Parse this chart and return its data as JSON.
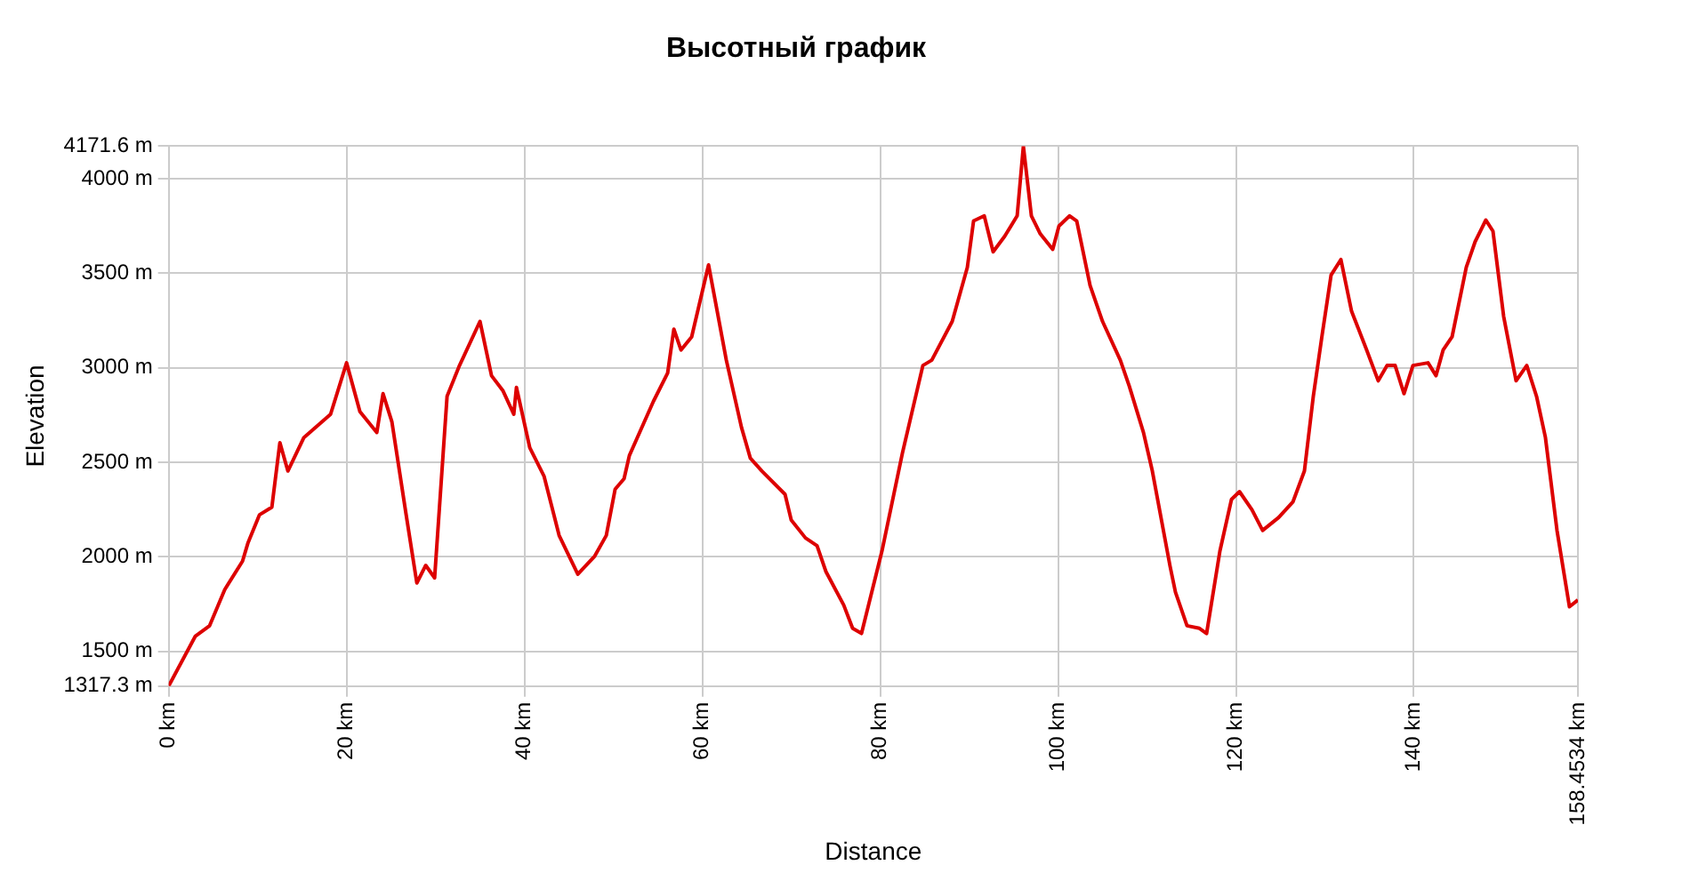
{
  "chart_data": {
    "type": "line",
    "title": "Высотный график",
    "xlabel": "Distance",
    "ylabel": "Elevation",
    "xlim": [
      0,
      158.4534
    ],
    "xticks": [
      {
        "value": 0,
        "label": "0 km"
      },
      {
        "value": 20,
        "label": "20 km"
      },
      {
        "value": 40,
        "label": "40 km"
      },
      {
        "value": 60,
        "label": "60 km"
      },
      {
        "value": 80,
        "label": "80 km"
      },
      {
        "value": 100,
        "label": "100 km"
      },
      {
        "value": 120,
        "label": "120 km"
      },
      {
        "value": 140,
        "label": "140 km"
      },
      {
        "value": 158.4534,
        "label": "158.4534 km"
      }
    ],
    "ylim": [
      1317.3,
      4171.6
    ],
    "yticks": [
      {
        "value": 1317.3,
        "label": "1317.3 m"
      },
      {
        "value": 1500,
        "label": "1500 m"
      },
      {
        "value": 2000,
        "label": "2000 m"
      },
      {
        "value": 2500,
        "label": "2500 m"
      },
      {
        "value": 3000,
        "label": "3000 m"
      },
      {
        "value": 3500,
        "label": "3500 m"
      },
      {
        "value": 4000,
        "label": "4000 m"
      },
      {
        "value": 4171.6,
        "label": "4171.6 m"
      }
    ],
    "grid": true,
    "legend": false,
    "marker": "none",
    "line_style": "solid",
    "series": [
      {
        "color": "#dd0000",
        "x": [
          0,
          3,
          4.6,
          6.3,
          8.3,
          8.9,
          10.2,
          11.6,
          12.5,
          13.4,
          15.2,
          18.2,
          20,
          21.5,
          23.4,
          24.1,
          25.1,
          26.7,
          27.9,
          28.9,
          29.9,
          31.3,
          32.7,
          35,
          36.3,
          37.6,
          38.8,
          39.1,
          40.6,
          42.2,
          43.9,
          46,
          47.9,
          49.2,
          50.2,
          51.2,
          51.8,
          54.5,
          56.1,
          56.8,
          57.6,
          58.8,
          60.7,
          62.7,
          64.4,
          65.4,
          66.7,
          69.3,
          70,
          71.6,
          72.9,
          73.9,
          75.9,
          76.9,
          77.9,
          80.2,
          82.5,
          84.8,
          85.8,
          88.1,
          89.8,
          90.5,
          91.7,
          92.7,
          94,
          95.4,
          96.1,
          97,
          98,
          99.4,
          100.1,
          101.3,
          102.1,
          103.6,
          105,
          107,
          108,
          109.6,
          110.6,
          112.6,
          113.2,
          114.5,
          115.9,
          116.7,
          118.2,
          119.5,
          120.4,
          121.8,
          123,
          124.8,
          126.4,
          127.7,
          128.7,
          129.7,
          130.7,
          131.8,
          133,
          134.7,
          136,
          137,
          137.9,
          138.9,
          139.9,
          141.6,
          142.5,
          143.3,
          144.3,
          145.9,
          146.9,
          148.1,
          148.9,
          150.1,
          151.5,
          152.7,
          153.8,
          154.8,
          156.1,
          157.5,
          158.4534
        ],
        "values": [
          1317.3,
          1581,
          1636,
          1827,
          1977,
          2072,
          2222,
          2263,
          2604,
          2454,
          2631,
          2754,
          3026,
          2768,
          2658,
          2863,
          2713,
          2222,
          1862,
          1955,
          1889,
          2849,
          3012,
          3245,
          2958,
          2877,
          2754,
          2896,
          2577,
          2427,
          2113,
          1908,
          2004,
          2113,
          2358,
          2413,
          2536,
          2822,
          2972,
          3204,
          3094,
          3163,
          3544,
          3040,
          2685,
          2522,
          2454,
          2331,
          2195,
          2100,
          2059,
          1922,
          1745,
          1622,
          1595,
          2031,
          2549,
          3012,
          3040,
          3245,
          3531,
          3776,
          3803,
          3613,
          3695,
          3803,
          4171.6,
          3803,
          3708,
          3626,
          3749,
          3803,
          3776,
          3435,
          3245,
          3040,
          2904,
          2658,
          2454,
          1949,
          1813,
          1636,
          1622,
          1595,
          2031,
          2304,
          2345,
          2249,
          2140,
          2208,
          2290,
          2454,
          2849,
          3176,
          3490,
          3572,
          3299,
          3094,
          2931,
          3012,
          3012,
          2863,
          3012,
          3026,
          2958,
          3094,
          3163,
          3531,
          3667,
          3781,
          3722,
          3272,
          2931,
          3012,
          2849,
          2631,
          2140,
          1736,
          1772
        ]
      }
    ]
  }
}
